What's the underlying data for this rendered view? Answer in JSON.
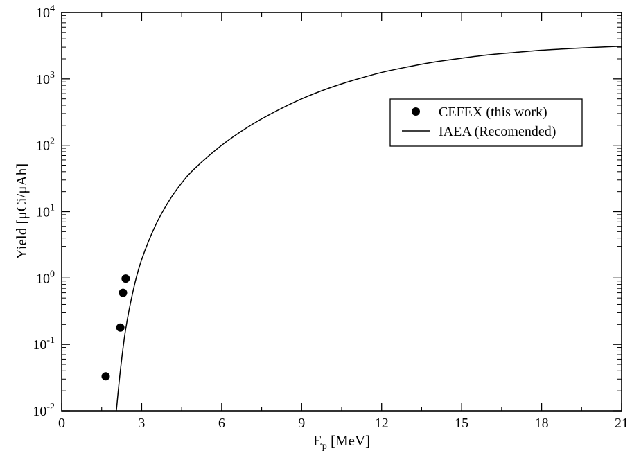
{
  "chart_data": {
    "type": "scatter",
    "title": "",
    "xlabel": {
      "main": "E",
      "sub": "p",
      "rest": " [MeV]"
    },
    "ylabel": "Yield [μCi/μAh]",
    "xlim": [
      0,
      21
    ],
    "ylim": [
      0.01,
      10000
    ],
    "yscale": "log",
    "x_ticks": [
      0,
      3,
      6,
      9,
      12,
      15,
      18,
      21
    ],
    "x_tick_labels": [
      "0",
      "3",
      "6",
      "9",
      "12",
      "15",
      "18",
      "21"
    ],
    "y_ticks": [
      {
        "value": 0.01,
        "base": "10",
        "exp": "-2"
      },
      {
        "value": 0.1,
        "base": "10",
        "exp": "-1"
      },
      {
        "value": 1,
        "base": "10",
        "exp": "0"
      },
      {
        "value": 10,
        "base": "10",
        "exp": "1"
      },
      {
        "value": 100,
        "base": "10",
        "exp": "2"
      },
      {
        "value": 1000,
        "base": "10",
        "exp": "3"
      },
      {
        "value": 10000,
        "base": "10",
        "exp": "4"
      }
    ],
    "grid": false,
    "legend_position": "upper-right",
    "series": [
      {
        "name": "CEFEX (this work)",
        "kind": "scatter",
        "color": "#000000",
        "points": [
          {
            "x": 1.65,
            "y": 0.033
          },
          {
            "x": 2.2,
            "y": 0.18
          },
          {
            "x": 2.3,
            "y": 0.6
          },
          {
            "x": 2.4,
            "y": 0.98
          }
        ]
      },
      {
        "name": "IAEA (Recomended)",
        "kind": "line",
        "color": "#000000",
        "points": [
          {
            "x": 2.05,
            "y": 0.01
          },
          {
            "x": 2.2,
            "y": 0.04
          },
          {
            "x": 2.4,
            "y": 0.17
          },
          {
            "x": 2.7,
            "y": 0.7
          },
          {
            "x": 3.0,
            "y": 1.9
          },
          {
            "x": 3.5,
            "y": 6.0
          },
          {
            "x": 4.0,
            "y": 14
          },
          {
            "x": 4.5,
            "y": 27
          },
          {
            "x": 5.0,
            "y": 45
          },
          {
            "x": 6.0,
            "y": 100
          },
          {
            "x": 7.0,
            "y": 190
          },
          {
            "x": 8.0,
            "y": 320
          },
          {
            "x": 9.0,
            "y": 500
          },
          {
            "x": 10.0,
            "y": 720
          },
          {
            "x": 11.0,
            "y": 970
          },
          {
            "x": 12.0,
            "y": 1250
          },
          {
            "x": 13.0,
            "y": 1520
          },
          {
            "x": 14.0,
            "y": 1800
          },
          {
            "x": 15.0,
            "y": 2050
          },
          {
            "x": 16.0,
            "y": 2300
          },
          {
            "x": 17.0,
            "y": 2500
          },
          {
            "x": 18.0,
            "y": 2700
          },
          {
            "x": 19.0,
            "y": 2850
          },
          {
            "x": 20.0,
            "y": 2980
          },
          {
            "x": 21.0,
            "y": 3100
          }
        ]
      }
    ]
  }
}
